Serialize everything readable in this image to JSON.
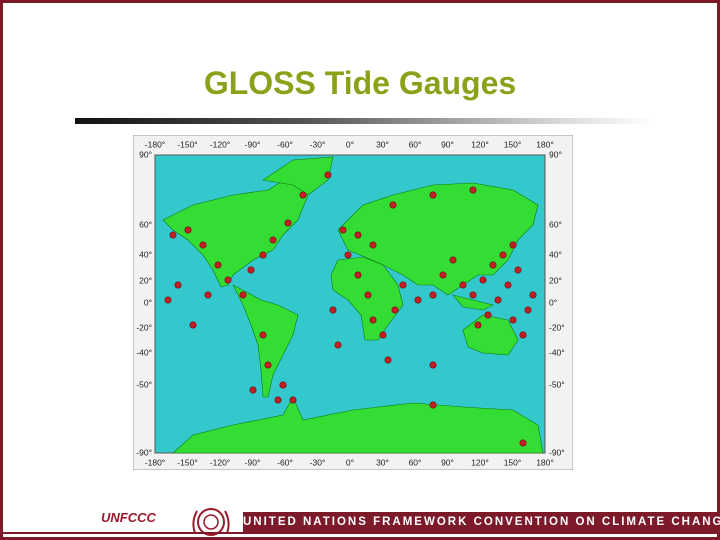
{
  "header": {
    "title": "GLOSS Tide Gauges"
  },
  "map": {
    "top_labels": [
      "-180°",
      "-150°",
      "-120°",
      "-90°",
      "-60°",
      "-30°",
      "0°",
      "30°",
      "60°",
      "90°",
      "120°",
      "150°",
      "180°"
    ],
    "bottom_labels": [
      "-180°",
      "-150°",
      "-120°",
      "-90°",
      "-60°",
      "-30°",
      "0°",
      "30°",
      "60°",
      "90°",
      "120°",
      "150°",
      "180°"
    ],
    "left_labels": [
      "90°",
      "60°",
      "40°",
      "20°",
      "0°",
      "-20°",
      "-40°",
      "-50°",
      "-90°"
    ],
    "right_labels": [
      "90°",
      "60°",
      "40°",
      "20°",
      "0°",
      "-20°",
      "-40°",
      "-50°",
      "-90°"
    ]
  },
  "footer": {
    "logo": "UNFCCC",
    "text": "UNITED NATIONS FRAMEWORK CONVENTION ON CLIMATE CHANGE"
  }
}
